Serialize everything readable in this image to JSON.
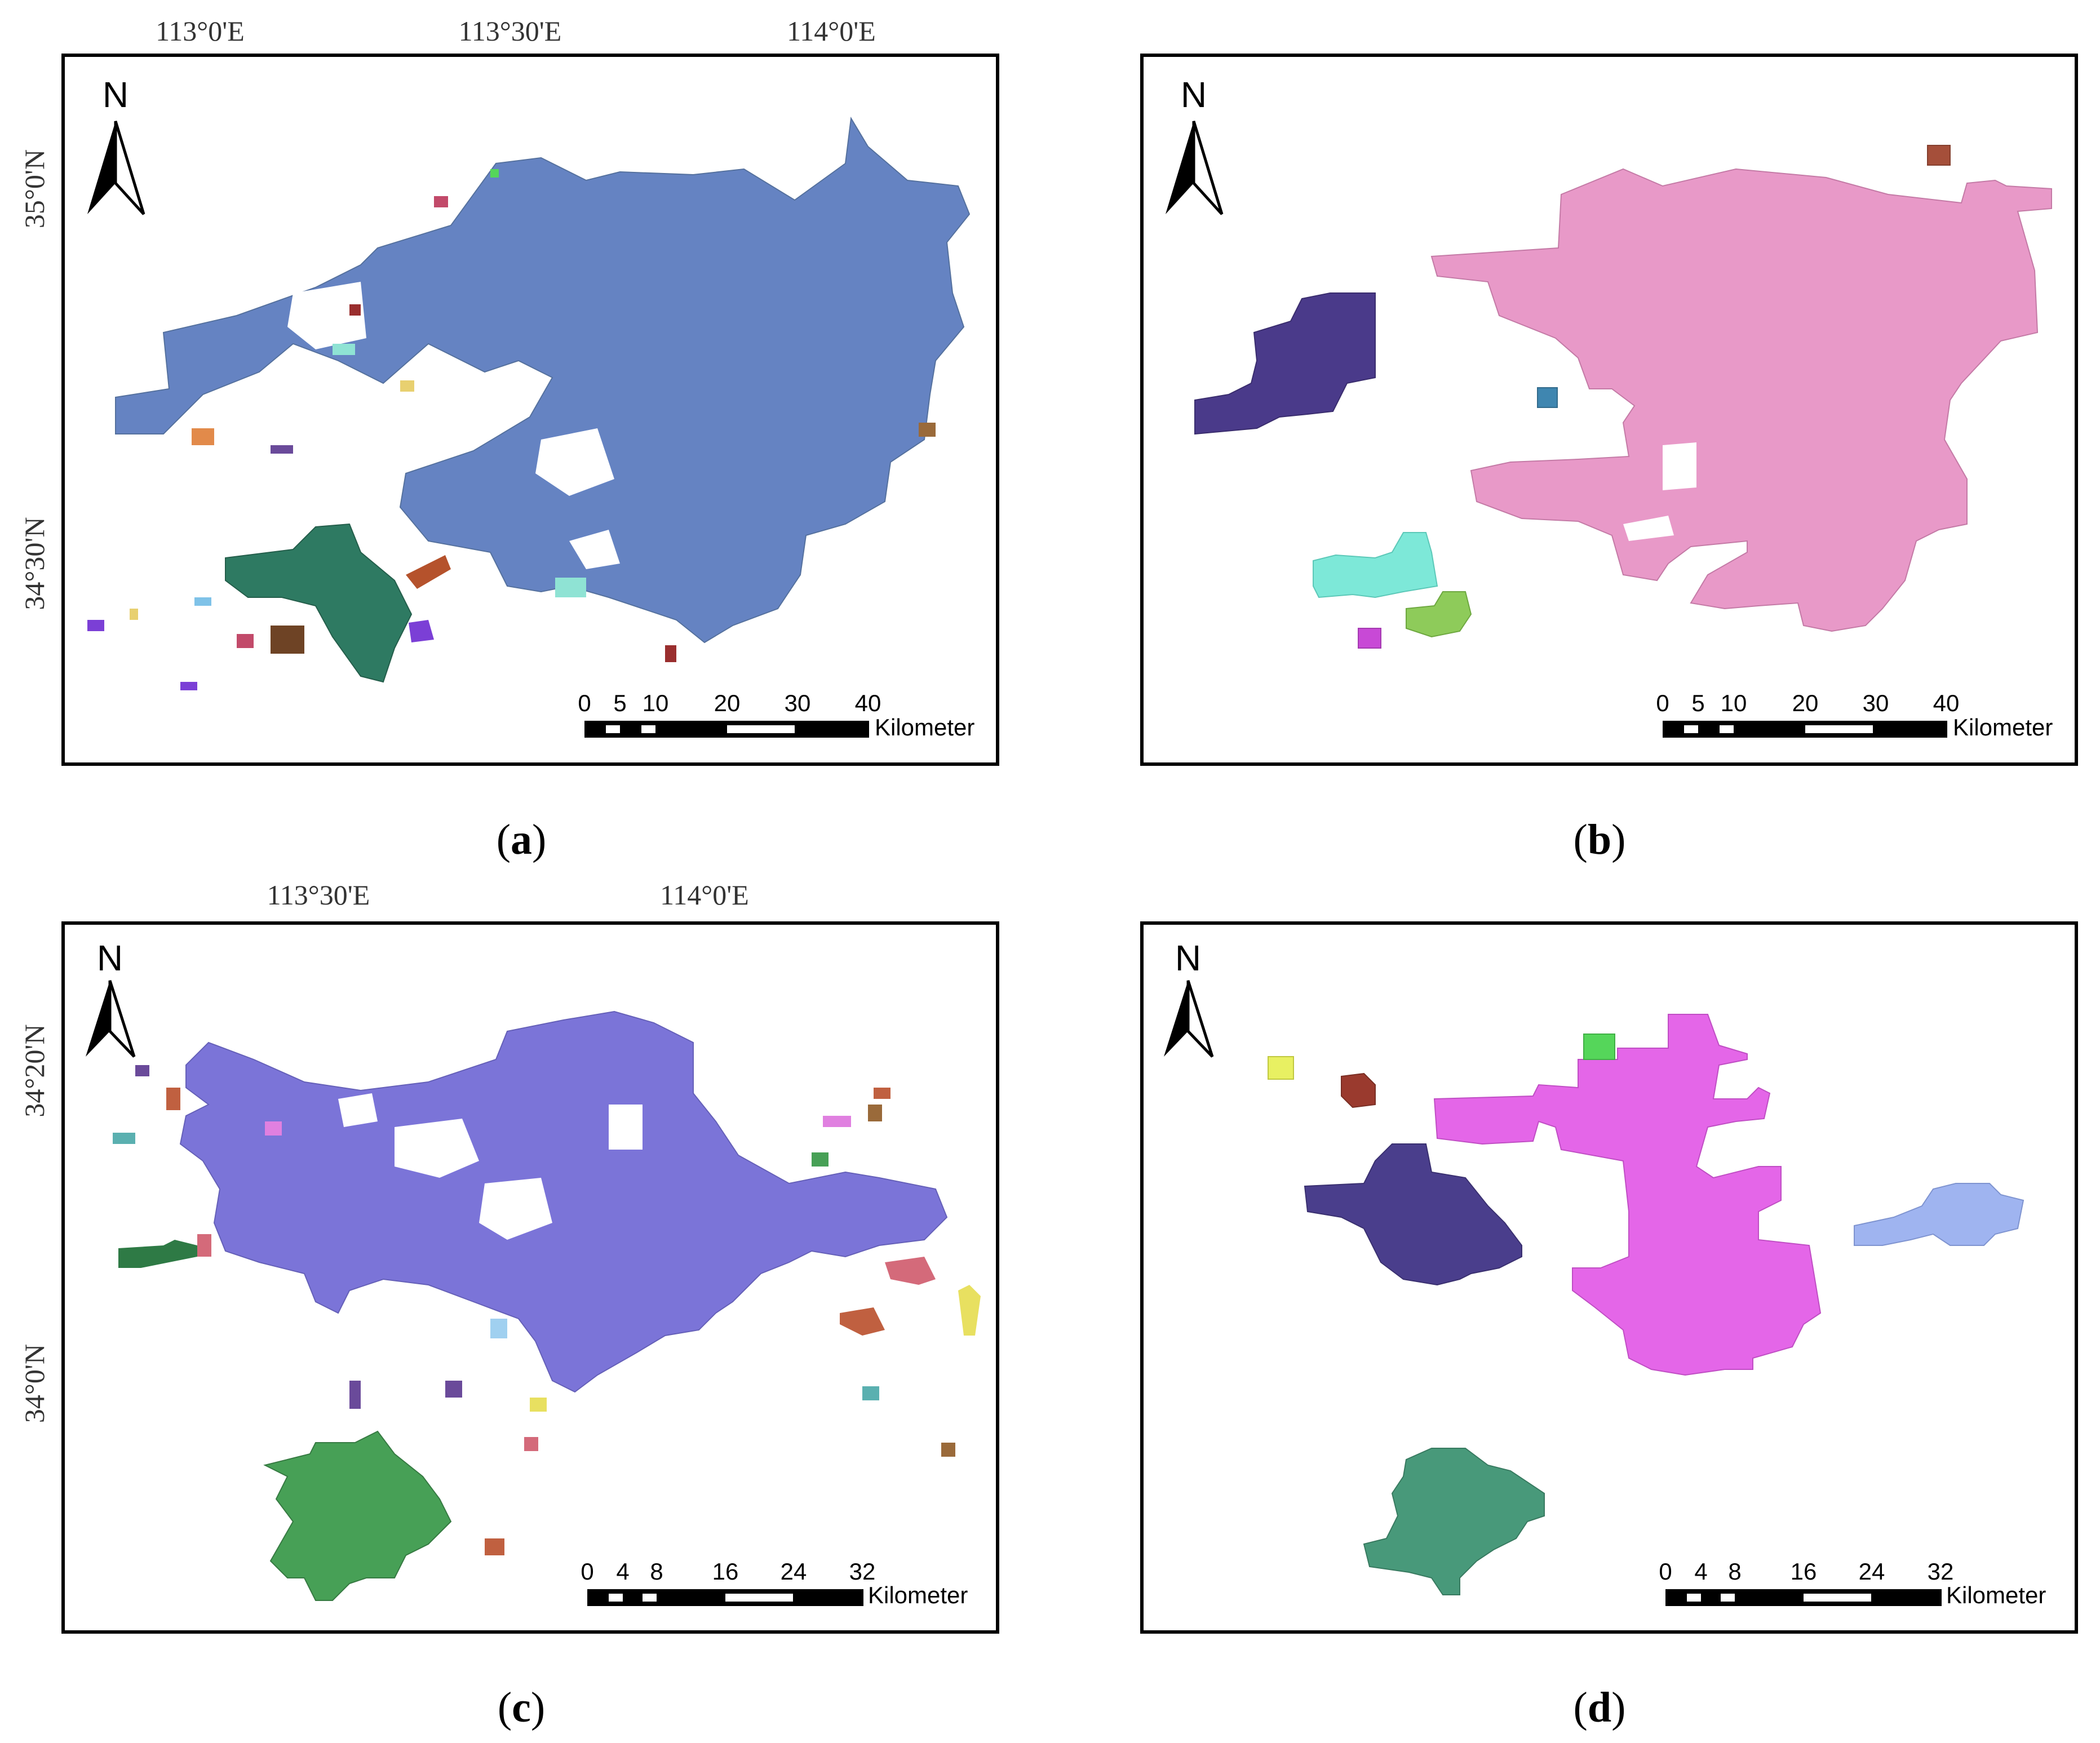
{
  "panels": [
    {
      "id": "a",
      "caption_letter": "a",
      "top_labels": [
        "113°0'E",
        "113°30'E",
        "114°0'E"
      ],
      "side_labels": [
        "35°0'N",
        "34°30'N"
      ],
      "north_label": "N",
      "scale": {
        "ticks": [
          "0",
          "5",
          "10",
          "20",
          "30",
          "40"
        ],
        "unit": "Kilometer"
      },
      "main_color": "#6583c2",
      "patch_colors": [
        "#2e7a62",
        "#6e4325",
        "#b5522c",
        "#e28a4a",
        "#8fe3d4",
        "#7b3fd6",
        "#9a2e2e",
        "#c24a6a",
        "#e8d070",
        "#7fc2e8"
      ]
    },
    {
      "id": "b",
      "caption_letter": "b",
      "top_labels": [],
      "side_labels": [],
      "north_label": "N",
      "scale": {
        "ticks": [
          "0",
          "5",
          "10",
          "20",
          "30",
          "40"
        ],
        "unit": "Kilometer"
      },
      "main_color": "#e899c8",
      "patch_colors": [
        "#4a3a8a",
        "#7de8d8",
        "#8ecb5a",
        "#c849d6",
        "#a54f3a",
        "#3f86b0"
      ]
    },
    {
      "id": "c",
      "caption_letter": "c",
      "top_labels": [
        "113°30'E",
        "114°0'E"
      ],
      "side_labels": [
        "34°20'N",
        "34°0'N"
      ],
      "north_label": "N",
      "scale": {
        "ticks": [
          "0",
          "4",
          "8",
          "16",
          "24",
          "32"
        ],
        "unit": "Kilometer"
      },
      "main_color": "#7b74d8",
      "patch_colors": [
        "#47a056",
        "#2e7a45",
        "#e8e060",
        "#d46a7a",
        "#5ab0b0",
        "#a0d0f0",
        "#9a6a3a",
        "#6a4a9a",
        "#e080e0",
        "#c06040"
      ]
    },
    {
      "id": "d",
      "caption_letter": "d",
      "top_labels": [],
      "side_labels": [],
      "north_label": "N",
      "scale": {
        "ticks": [
          "0",
          "4",
          "8",
          "16",
          "24",
          "32"
        ],
        "unit": "Kilometer"
      },
      "main_color": "#e466e8",
      "patch_colors": [
        "#4a3e8c",
        "#48997a",
        "#9fb4f0",
        "#9a3a2e",
        "#e8f062",
        "#55d65a"
      ]
    }
  ]
}
